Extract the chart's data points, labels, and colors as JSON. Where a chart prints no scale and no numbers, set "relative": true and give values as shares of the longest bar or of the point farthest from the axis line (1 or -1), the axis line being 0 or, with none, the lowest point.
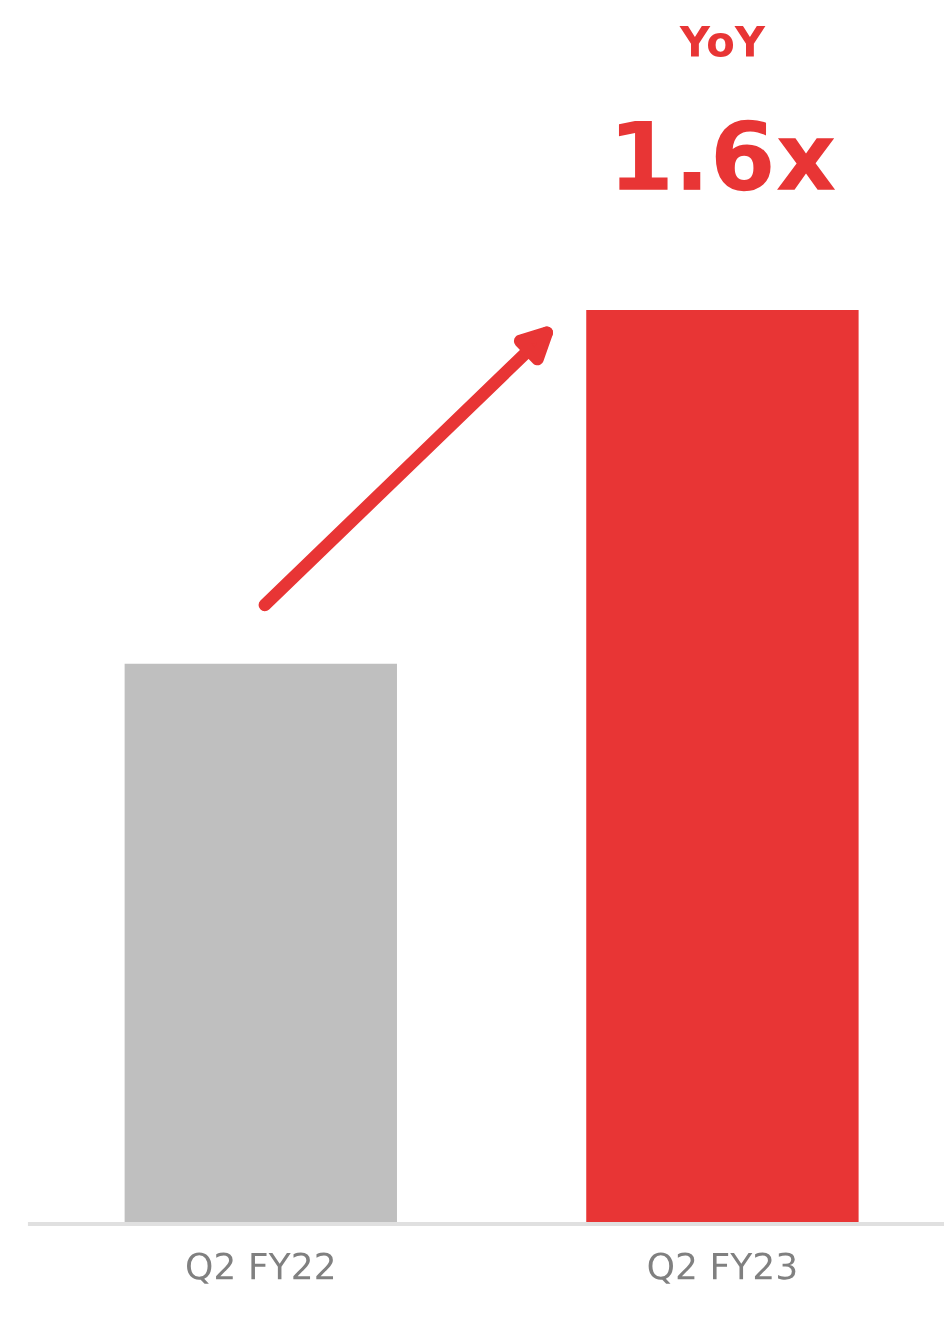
{
  "chart_data": {
    "type": "bar",
    "relative": true,
    "categories": [
      "Q2 FY22",
      "Q2 FY23"
    ],
    "values": [
      0.613,
      1
    ],
    "colors": [
      "#bfbfbf",
      "#e83535"
    ],
    "annotations": [
      "YoY",
      "1.6x"
    ]
  }
}
